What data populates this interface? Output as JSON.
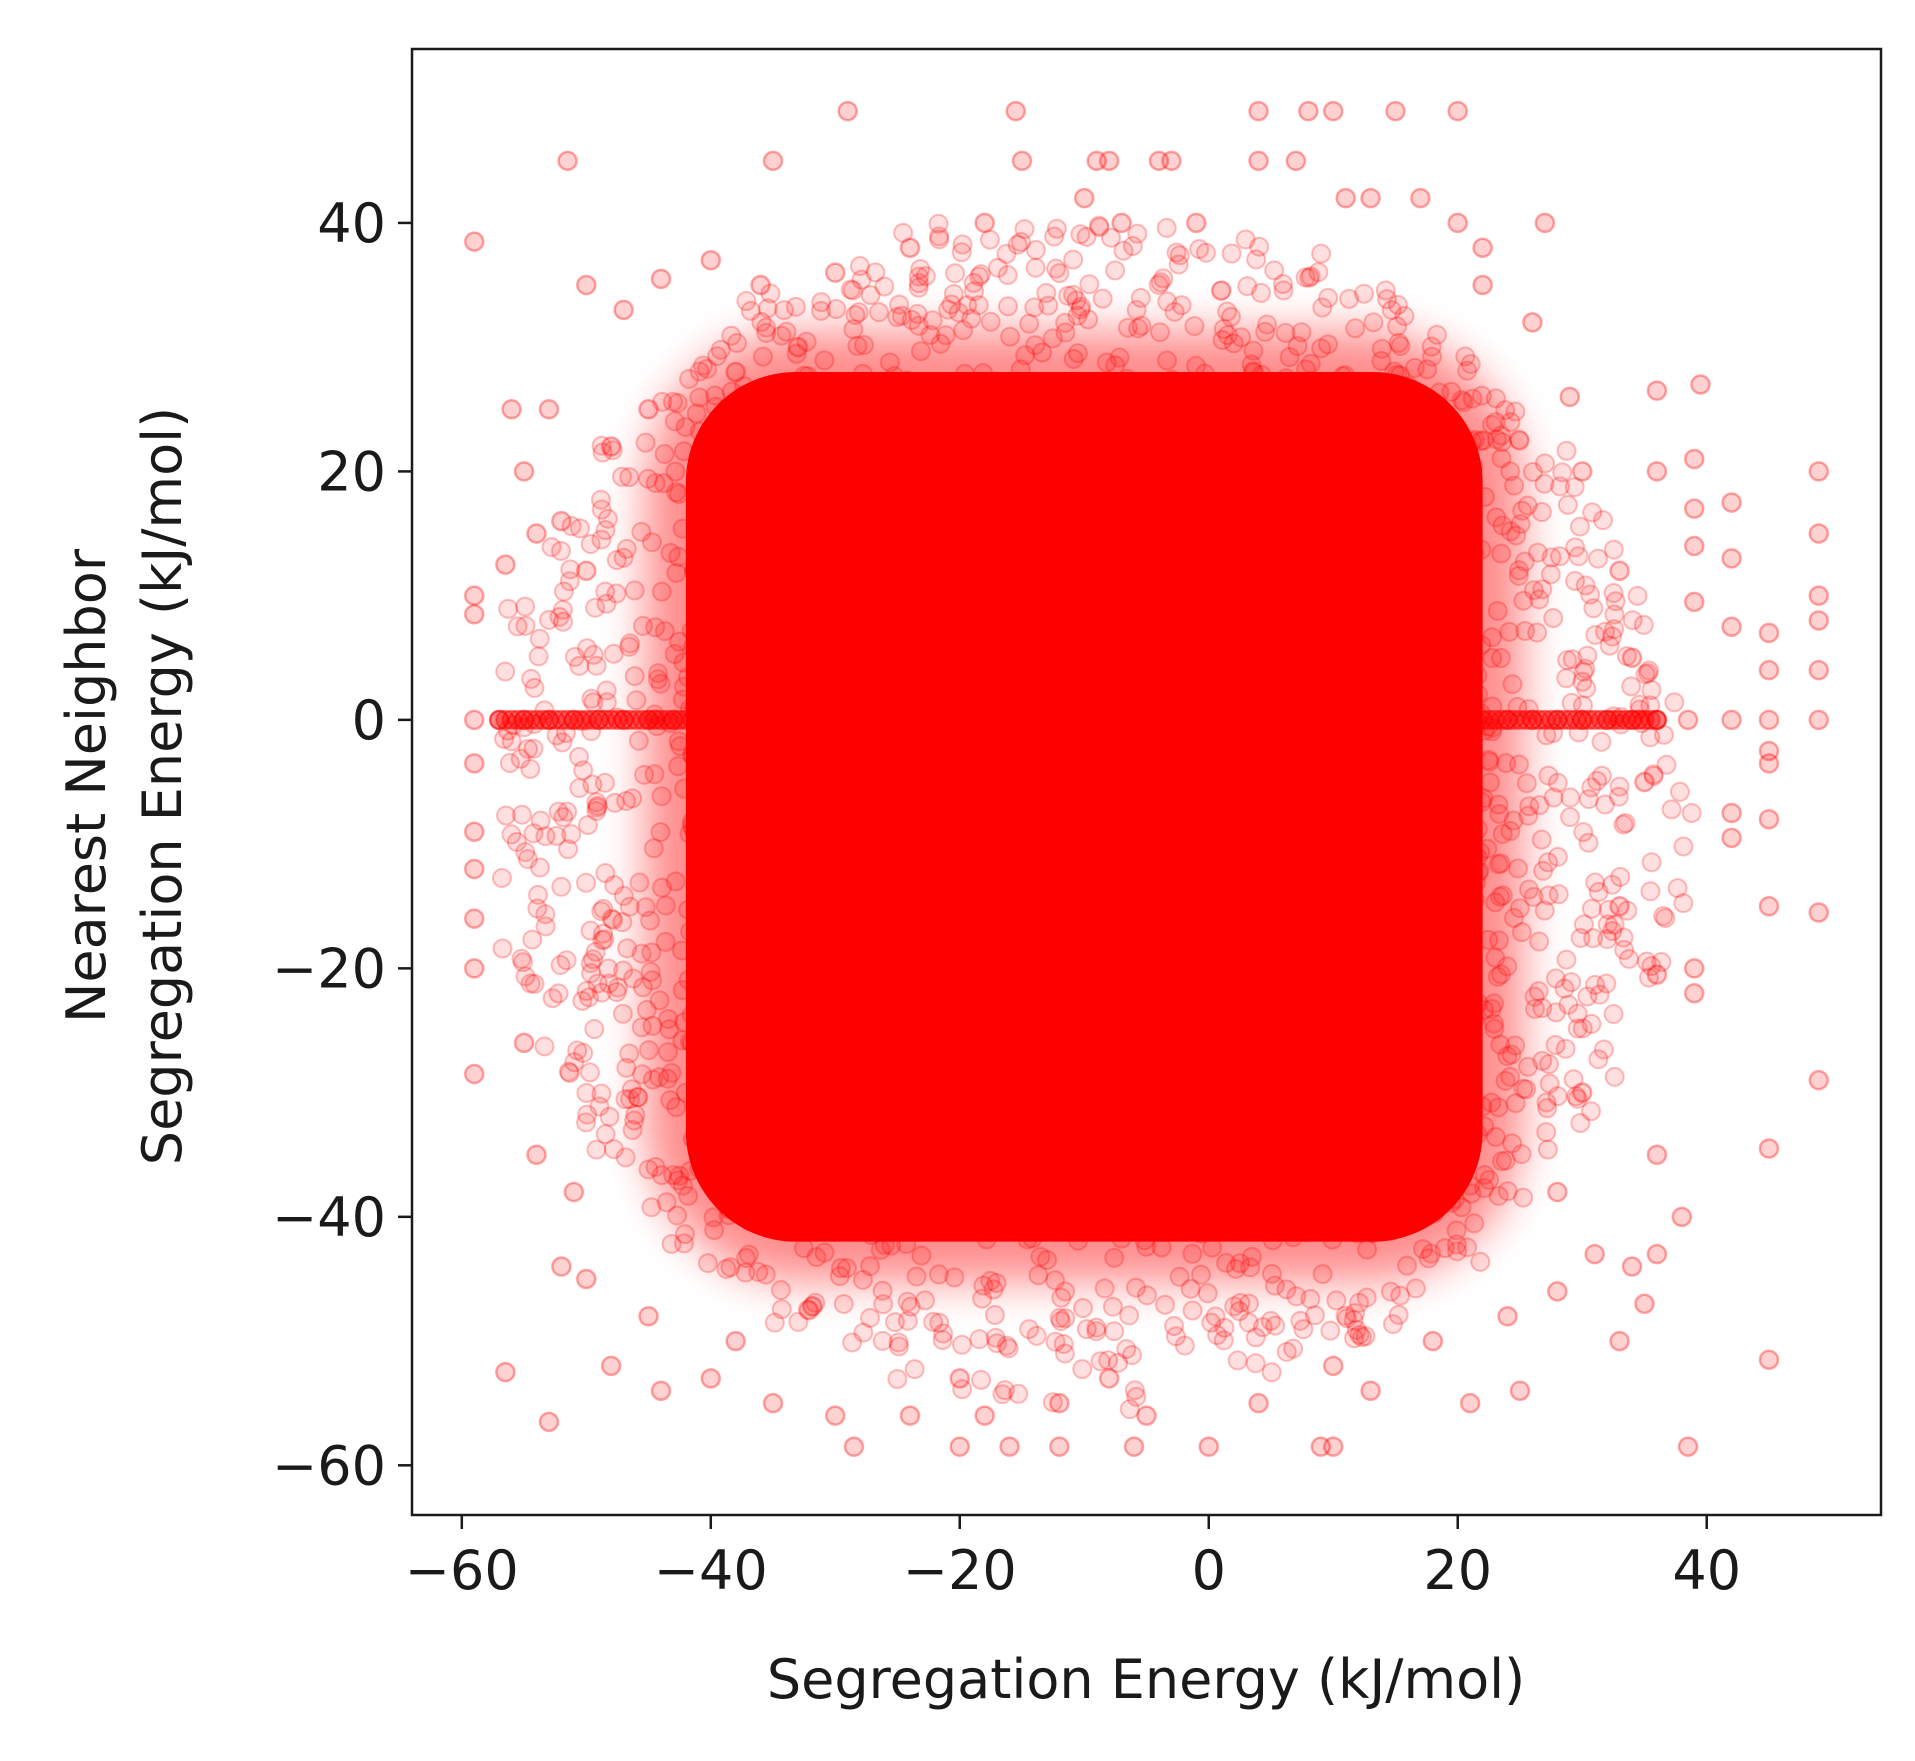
{
  "chart_data": {
    "type": "scatter",
    "title": "",
    "xlabel": "Segregation Energy (kJ/mol)",
    "ylabel_lines": [
      "Nearest Neighbor",
      "Segregation Energy (kJ/mol)"
    ],
    "xlim": [
      -64,
      54
    ],
    "ylim": [
      -64,
      54
    ],
    "xticks": [
      -60,
      -40,
      -20,
      0,
      20,
      40
    ],
    "yticks": [
      -60,
      -40,
      -20,
      0,
      20,
      40
    ],
    "xtick_labels": [
      "−60",
      "−40",
      "−20",
      "0",
      "20",
      "40"
    ],
    "ytick_labels": [
      "−60",
      "−40",
      "−20",
      "0",
      "20",
      "40"
    ],
    "grid": false,
    "marker": {
      "shape": "circle",
      "color": "#ff0000",
      "alpha": 0.18
    },
    "dense_core": {
      "x_range": [
        -42,
        22
      ],
      "y_range": [
        -42,
        28
      ]
    },
    "zero_line_points": {
      "y": 0,
      "x_range": [
        -57,
        36
      ]
    },
    "series": [
      {
        "values": [
          [
            -59,
            38.5
          ],
          [
            -51.5,
            45
          ],
          [
            -35,
            45
          ],
          [
            -29,
            49
          ],
          [
            -15.5,
            49
          ],
          [
            -15,
            45
          ],
          [
            -9,
            45
          ],
          [
            -8,
            45
          ],
          [
            -4,
            45
          ],
          [
            -3,
            45
          ],
          [
            4,
            49
          ],
          [
            4,
            45
          ],
          [
            8,
            49
          ],
          [
            10,
            49
          ],
          [
            15,
            49
          ],
          [
            20,
            49
          ],
          [
            7,
            45
          ],
          [
            -59,
            10
          ],
          [
            -59,
            8.5
          ],
          [
            -59,
            0
          ],
          [
            -59,
            -3.5
          ],
          [
            -59,
            -9
          ],
          [
            -59,
            -12
          ],
          [
            -59,
            -16
          ],
          [
            -59,
            -20
          ],
          [
            -59,
            -28.5
          ],
          [
            -56.5,
            -52.5
          ],
          [
            -53,
            -56.5
          ],
          [
            -56.5,
            12.5
          ],
          [
            -56,
            25
          ],
          [
            -55,
            20
          ],
          [
            -28.5,
            -58.5
          ],
          [
            -20,
            -58.5
          ],
          [
            -16,
            -58.5
          ],
          [
            -12,
            -58.5
          ],
          [
            -6,
            -58.5
          ],
          [
            0,
            -58.5
          ],
          [
            9,
            -58.5
          ],
          [
            10,
            -58.5
          ],
          [
            38.5,
            -58.5
          ],
          [
            -57,
            0
          ],
          [
            -55,
            0
          ],
          [
            -53,
            0
          ],
          [
            -51,
            0
          ],
          [
            -49,
            0
          ],
          [
            -47,
            0
          ],
          [
            -45,
            0
          ],
          [
            -43,
            0
          ],
          [
            24,
            0
          ],
          [
            26,
            0
          ],
          [
            28,
            0
          ],
          [
            30,
            0
          ],
          [
            32,
            0
          ],
          [
            34,
            0
          ],
          [
            36,
            0
          ],
          [
            38.5,
            0
          ],
          [
            42,
            0
          ],
          [
            45,
            0
          ],
          [
            49,
            0
          ],
          [
            49,
            20
          ],
          [
            49,
            15
          ],
          [
            49,
            10
          ],
          [
            49,
            8
          ],
          [
            49,
            4
          ],
          [
            49,
            -15.5
          ],
          [
            49,
            -29
          ],
          [
            45,
            7
          ],
          [
            45,
            4
          ],
          [
            45,
            -2.5
          ],
          [
            45,
            -3.5
          ],
          [
            45,
            -8
          ],
          [
            45,
            -15
          ],
          [
            45,
            -34.5
          ],
          [
            45,
            -51.5
          ],
          [
            42,
            17.5
          ],
          [
            42,
            13
          ],
          [
            42,
            7.5
          ],
          [
            42,
            -7.5
          ],
          [
            42,
            -9.5
          ],
          [
            39.5,
            27
          ],
          [
            39,
            21
          ],
          [
            39,
            17
          ],
          [
            39,
            14
          ],
          [
            39,
            9.5
          ],
          [
            39,
            -20
          ],
          [
            39,
            -22
          ],
          [
            38,
            -40
          ],
          [
            36,
            26.5
          ],
          [
            36,
            20
          ],
          [
            36,
            -20.5
          ],
          [
            36,
            -35
          ],
          [
            36,
            -43
          ],
          [
            35,
            -47
          ],
          [
            29,
            26
          ],
          [
            27,
            40
          ],
          [
            22,
            38
          ],
          [
            20,
            40
          ],
          [
            17,
            42
          ],
          [
            13,
            42
          ],
          [
            11,
            42
          ],
          [
            -1,
            40
          ],
          [
            -7,
            40
          ],
          [
            -10,
            42
          ],
          [
            -18,
            40
          ],
          [
            -24,
            38
          ],
          [
            -30,
            36
          ],
          [
            -36,
            35
          ],
          [
            -40,
            37
          ],
          [
            -44,
            35.5
          ],
          [
            -47,
            33
          ],
          [
            -50,
            35
          ],
          [
            -53,
            25
          ],
          [
            -52,
            16
          ],
          [
            -51,
            -38
          ],
          [
            -50,
            -45
          ],
          [
            -48,
            -52
          ],
          [
            -44,
            -54
          ],
          [
            -40,
            -53
          ],
          [
            -35,
            -55
          ],
          [
            -30,
            -56
          ],
          [
            -24,
            -56
          ],
          [
            -18,
            -56
          ],
          [
            -12,
            -55
          ],
          [
            -5,
            -56
          ],
          [
            4,
            -55
          ],
          [
            13,
            -54
          ],
          [
            21,
            -55
          ],
          [
            25,
            -54
          ],
          [
            28,
            -46
          ],
          [
            31,
            -43
          ],
          [
            33,
            -50
          ],
          [
            34,
            -44
          ],
          [
            26,
            32
          ],
          [
            22,
            35
          ],
          [
            -33,
            30
          ],
          [
            -38,
            28
          ],
          [
            -45,
            25
          ],
          [
            -48,
            22
          ],
          [
            -50,
            12
          ],
          [
            -54,
            15
          ],
          [
            -55,
            -26
          ],
          [
            -54,
            -35
          ],
          [
            -52,
            -44
          ],
          [
            -45,
            -48
          ],
          [
            -38,
            -50
          ],
          [
            -20,
            -53
          ],
          [
            -8,
            -53
          ],
          [
            10,
            -52
          ],
          [
            18,
            -50
          ],
          [
            24,
            -48
          ],
          [
            30,
            20
          ],
          [
            33,
            12
          ],
          [
            34,
            5
          ],
          [
            35,
            -5
          ],
          [
            33,
            -15
          ],
          [
            30,
            -30
          ],
          [
            28,
            -38
          ]
        ]
      }
    ]
  }
}
